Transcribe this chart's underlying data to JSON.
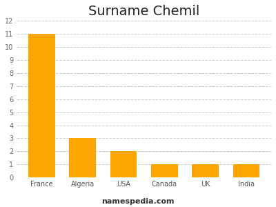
{
  "title": "Surname Chemil",
  "categories": [
    "France",
    "Algeria",
    "USA",
    "Canada",
    "UK",
    "India"
  ],
  "values": [
    11,
    3,
    2,
    1,
    1,
    1
  ],
  "bar_color": "#FFA500",
  "ylim": [
    0,
    12
  ],
  "yticks": [
    0,
    1,
    2,
    3,
    4,
    5,
    6,
    7,
    8,
    9,
    10,
    11,
    12
  ],
  "background_color": "#ffffff",
  "grid_color": "#cccccc",
  "title_fontsize": 14,
  "tick_fontsize": 7,
  "watermark": "namespedia.com",
  "watermark_fontsize": 8,
  "watermark_fontweight": "bold"
}
